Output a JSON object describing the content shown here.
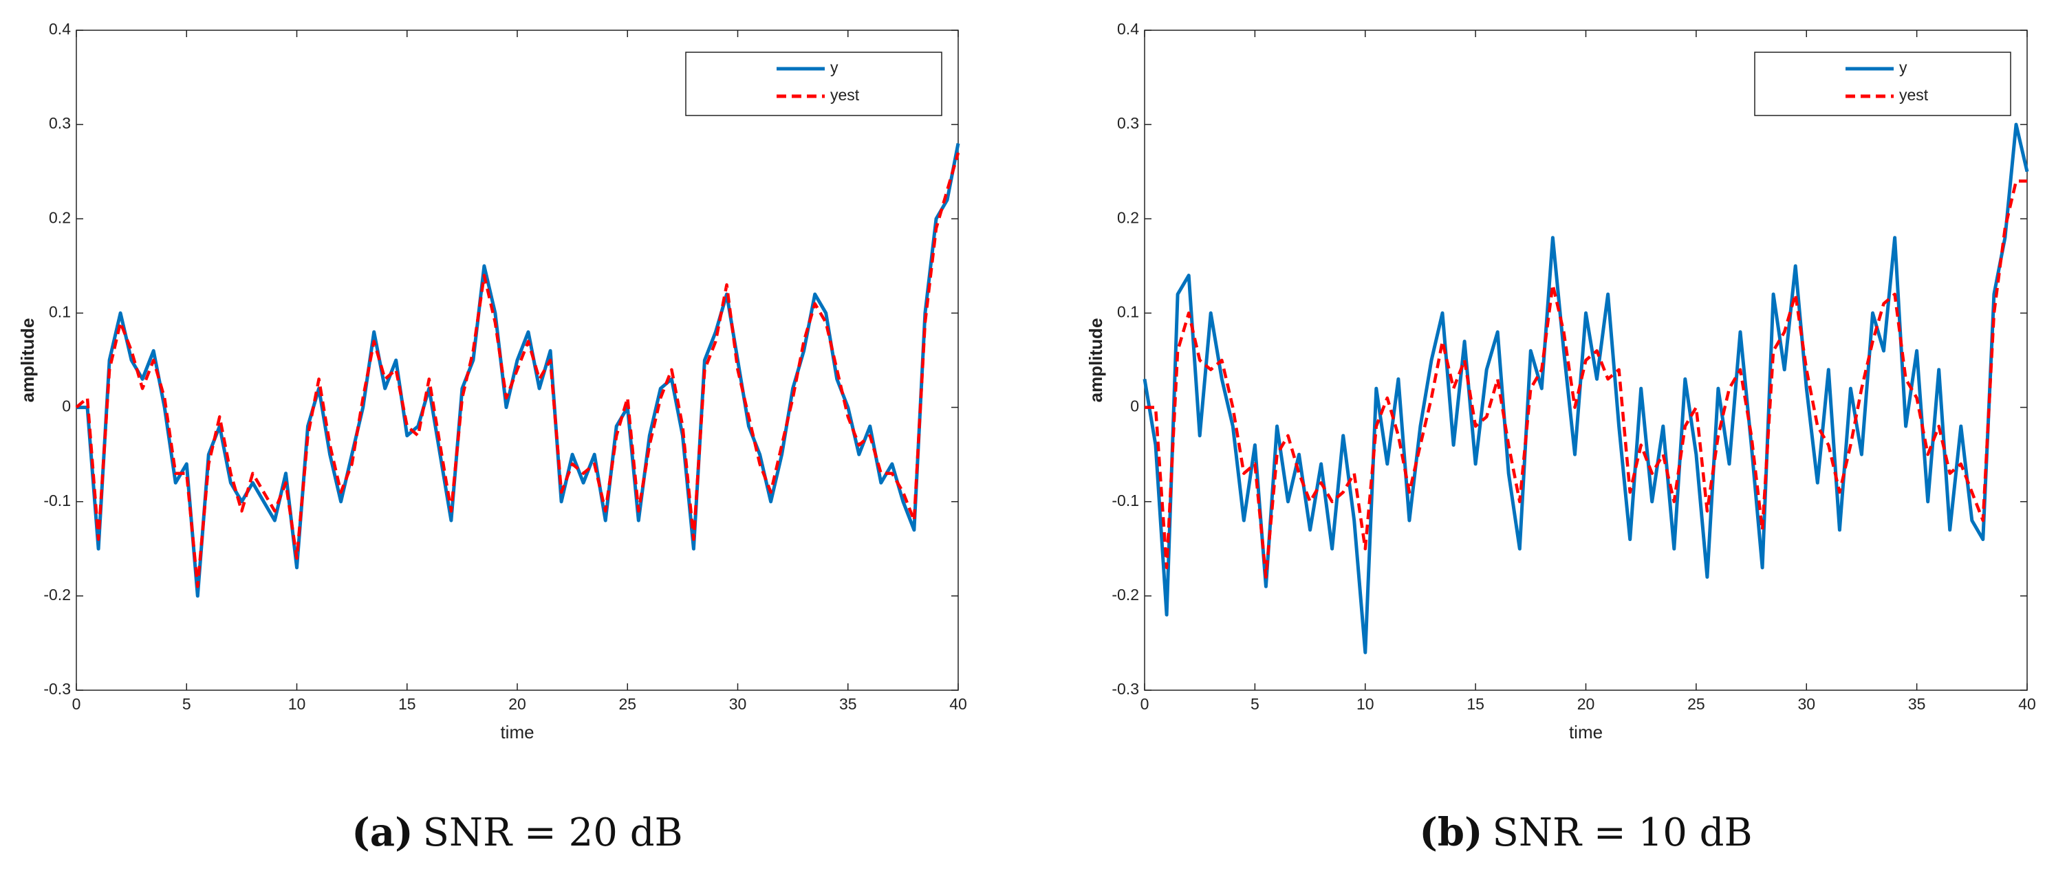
{
  "chart_data": [
    {
      "type": "line",
      "xlabel": "time",
      "ylabel": "amplitude",
      "caption_label": "(a)",
      "caption": "SNR = 20 dB",
      "xlim": [
        0,
        40
      ],
      "ylim": [
        -0.3,
        0.4
      ],
      "xticks": [
        0,
        5,
        10,
        15,
        20,
        25,
        30,
        35,
        40
      ],
      "yticks": [
        -0.3,
        -0.2,
        -0.1,
        0,
        0.1,
        0.2,
        0.3,
        0.4
      ],
      "legend": "upper right",
      "x": [
        0,
        0.5,
        1,
        1.5,
        2,
        2.5,
        3,
        3.5,
        4,
        4.5,
        5,
        5.5,
        6,
        6.5,
        7,
        7.5,
        8,
        8.5,
        9,
        9.5,
        10,
        10.5,
        11,
        11.5,
        12,
        12.5,
        13,
        13.5,
        14,
        14.5,
        15,
        15.5,
        16,
        16.5,
        17,
        17.5,
        18,
        18.5,
        19,
        19.5,
        20,
        20.5,
        21,
        21.5,
        22,
        22.5,
        23,
        23.5,
        24,
        24.5,
        25,
        25.5,
        26,
        26.5,
        27,
        27.5,
        28,
        28.5,
        29,
        29.5,
        30,
        30.5,
        31,
        31.5,
        32,
        32.5,
        33,
        33.5,
        34,
        34.5,
        35,
        35.5,
        36,
        36.5,
        37,
        37.5,
        38,
        38.5,
        39,
        39.5,
        40
      ],
      "series": [
        {
          "name": "y",
          "color": "#0072bd",
          "values": [
            0,
            0,
            -0.15,
            0.05,
            0.1,
            0.05,
            0.03,
            0.06,
            0,
            -0.08,
            -0.06,
            -0.2,
            -0.05,
            -0.02,
            -0.08,
            -0.1,
            -0.08,
            -0.1,
            -0.12,
            -0.07,
            -0.17,
            -0.02,
            0.02,
            -0.05,
            -0.1,
            -0.05,
            0,
            0.08,
            0.02,
            0.05,
            -0.03,
            -0.02,
            0.02,
            -0.05,
            -0.12,
            0.02,
            0.05,
            0.15,
            0.1,
            0,
            0.05,
            0.08,
            0.02,
            0.06,
            -0.1,
            -0.05,
            -0.08,
            -0.05,
            -0.12,
            -0.02,
            0,
            -0.12,
            -0.03,
            0.02,
            0.03,
            -0.03,
            -0.15,
            0.05,
            0.08,
            0.12,
            0.05,
            -0.02,
            -0.05,
            -0.1,
            -0.05,
            0.02,
            0.06,
            0.12,
            0.1,
            0.03,
            0,
            -0.05,
            -0.02,
            -0.08,
            -0.06,
            -0.1,
            -0.13,
            0.1,
            0.2,
            0.22,
            0.28
          ]
        },
        {
          "name": "yest",
          "color": "#ff0000",
          "dashed": true,
          "values": [
            0,
            0.01,
            -0.14,
            0.04,
            0.09,
            0.06,
            0.02,
            0.05,
            0.01,
            -0.07,
            -0.07,
            -0.19,
            -0.06,
            -0.01,
            -0.07,
            -0.11,
            -0.07,
            -0.09,
            -0.11,
            -0.08,
            -0.16,
            -0.03,
            0.03,
            -0.04,
            -0.09,
            -0.06,
            0.01,
            0.07,
            0.03,
            0.04,
            -0.02,
            -0.03,
            0.03,
            -0.04,
            -0.11,
            0.01,
            0.06,
            0.14,
            0.09,
            0.01,
            0.04,
            0.07,
            0.03,
            0.05,
            -0.09,
            -0.06,
            -0.07,
            -0.06,
            -0.11,
            -0.03,
            0.01,
            -0.11,
            -0.04,
            0.01,
            0.04,
            -0.02,
            -0.14,
            0.04,
            0.07,
            0.13,
            0.04,
            -0.01,
            -0.06,
            -0.09,
            -0.04,
            0.01,
            0.07,
            0.11,
            0.09,
            0.04,
            -0.01,
            -0.04,
            -0.03,
            -0.07,
            -0.07,
            -0.09,
            -0.12,
            0.09,
            0.19,
            0.23,
            0.27
          ]
        }
      ]
    },
    {
      "type": "line",
      "xlabel": "time",
      "ylabel": "amplitude",
      "caption_label": "(b)",
      "caption": "SNR = 10 dB",
      "xlim": [
        0,
        40
      ],
      "ylim": [
        -0.3,
        0.4
      ],
      "xticks": [
        0,
        5,
        10,
        15,
        20,
        25,
        30,
        35,
        40
      ],
      "yticks": [
        -0.3,
        -0.2,
        -0.1,
        0,
        0.1,
        0.2,
        0.3,
        0.4
      ],
      "legend": "upper right",
      "x": [
        0,
        0.5,
        1,
        1.5,
        2,
        2.5,
        3,
        3.5,
        4,
        4.5,
        5,
        5.5,
        6,
        6.5,
        7,
        7.5,
        8,
        8.5,
        9,
        9.5,
        10,
        10.5,
        11,
        11.5,
        12,
        12.5,
        13,
        13.5,
        14,
        14.5,
        15,
        15.5,
        16,
        16.5,
        17,
        17.5,
        18,
        18.5,
        19,
        19.5,
        20,
        20.5,
        21,
        21.5,
        22,
        22.5,
        23,
        23.5,
        24,
        24.5,
        25,
        25.5,
        26,
        26.5,
        27,
        27.5,
        28,
        28.5,
        29,
        29.5,
        30,
        30.5,
        31,
        31.5,
        32,
        32.5,
        33,
        33.5,
        34,
        34.5,
        35,
        35.5,
        36,
        36.5,
        37,
        37.5,
        38,
        38.5,
        39,
        39.5,
        40
      ],
      "series": [
        {
          "name": "y",
          "color": "#0072bd",
          "values": [
            0.03,
            -0.04,
            -0.22,
            0.12,
            0.14,
            -0.03,
            0.1,
            0.03,
            -0.02,
            -0.12,
            -0.04,
            -0.19,
            -0.02,
            -0.1,
            -0.05,
            -0.13,
            -0.06,
            -0.15,
            -0.03,
            -0.12,
            -0.26,
            0.02,
            -0.06,
            0.03,
            -0.12,
            -0.02,
            0.05,
            0.1,
            -0.04,
            0.07,
            -0.06,
            0.04,
            0.08,
            -0.07,
            -0.15,
            0.06,
            0.02,
            0.18,
            0.06,
            -0.05,
            0.1,
            0.03,
            0.12,
            -0.02,
            -0.14,
            0.02,
            -0.1,
            -0.02,
            -0.15,
            0.03,
            -0.05,
            -0.18,
            0.02,
            -0.06,
            0.08,
            -0.04,
            -0.17,
            0.12,
            0.04,
            0.15,
            0.02,
            -0.08,
            0.04,
            -0.13,
            0.02,
            -0.05,
            0.1,
            0.06,
            0.18,
            -0.02,
            0.06,
            -0.1,
            0.04,
            -0.13,
            -0.02,
            -0.12,
            -0.14,
            0.12,
            0.18,
            0.3,
            0.25
          ]
        },
        {
          "name": "yest",
          "color": "#ff0000",
          "dashed": true,
          "values": [
            0,
            0,
            -0.17,
            0.06,
            0.1,
            0.05,
            0.04,
            0.05,
            0,
            -0.07,
            -0.06,
            -0.18,
            -0.05,
            -0.03,
            -0.07,
            -0.1,
            -0.08,
            -0.1,
            -0.09,
            -0.07,
            -0.15,
            -0.02,
            0.01,
            -0.03,
            -0.09,
            -0.04,
            0.01,
            0.07,
            0.02,
            0.05,
            -0.02,
            -0.01,
            0.03,
            -0.04,
            -0.1,
            0.02,
            0.04,
            0.13,
            0.08,
            0,
            0.05,
            0.06,
            0.03,
            0.04,
            -0.09,
            -0.04,
            -0.07,
            -0.05,
            -0.1,
            -0.02,
            0,
            -0.11,
            -0.03,
            0.02,
            0.04,
            -0.03,
            -0.13,
            0.06,
            0.08,
            0.12,
            0.04,
            -0.02,
            -0.04,
            -0.09,
            -0.04,
            0.02,
            0.07,
            0.11,
            0.12,
            0.03,
            0.01,
            -0.05,
            -0.02,
            -0.07,
            -0.06,
            -0.09,
            -0.12,
            0.1,
            0.19,
            0.24,
            0.24
          ]
        }
      ]
    }
  ]
}
